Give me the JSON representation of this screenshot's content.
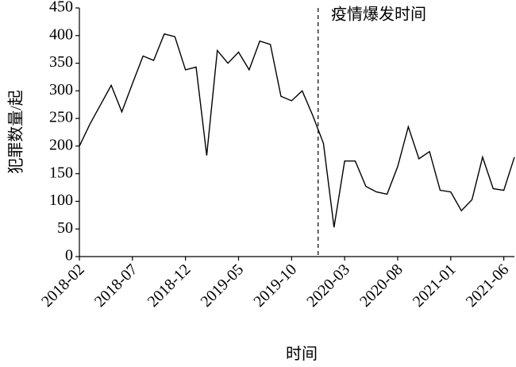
{
  "chart_data": {
    "type": "line",
    "y_label": "犯罪数量/起",
    "x_label": "时间",
    "annotation": "疫情爆发时间",
    "categories": [
      "2018-02",
      null,
      null,
      null,
      null,
      "2018-07",
      null,
      null,
      null,
      null,
      "2018-12",
      null,
      null,
      null,
      null,
      "2019-05",
      null,
      null,
      null,
      null,
      "2019-10",
      null,
      null,
      null,
      null,
      "2020-03",
      null,
      null,
      null,
      null,
      "2020-08",
      null,
      null,
      null,
      null,
      "2021-01",
      null,
      null,
      null,
      null,
      "2021-06",
      null
    ],
    "series": [
      {
        "name": "犯罪数量",
        "color": "#000000",
        "values": [
          200,
          240,
          275,
          310,
          262,
          313,
          363,
          355,
          403,
          398,
          338,
          343,
          183,
          373,
          350,
          370,
          338,
          390,
          384,
          290,
          282,
          300,
          255,
          205,
          53,
          173,
          173,
          127,
          117,
          113,
          163,
          235,
          177,
          190,
          120,
          117,
          83,
          103,
          180,
          123,
          120,
          180
        ]
      }
    ],
    "ylim": [
      0,
      450
    ],
    "yticks": [
      0,
      50,
      100,
      150,
      200,
      250,
      300,
      350,
      400,
      450
    ]
  }
}
